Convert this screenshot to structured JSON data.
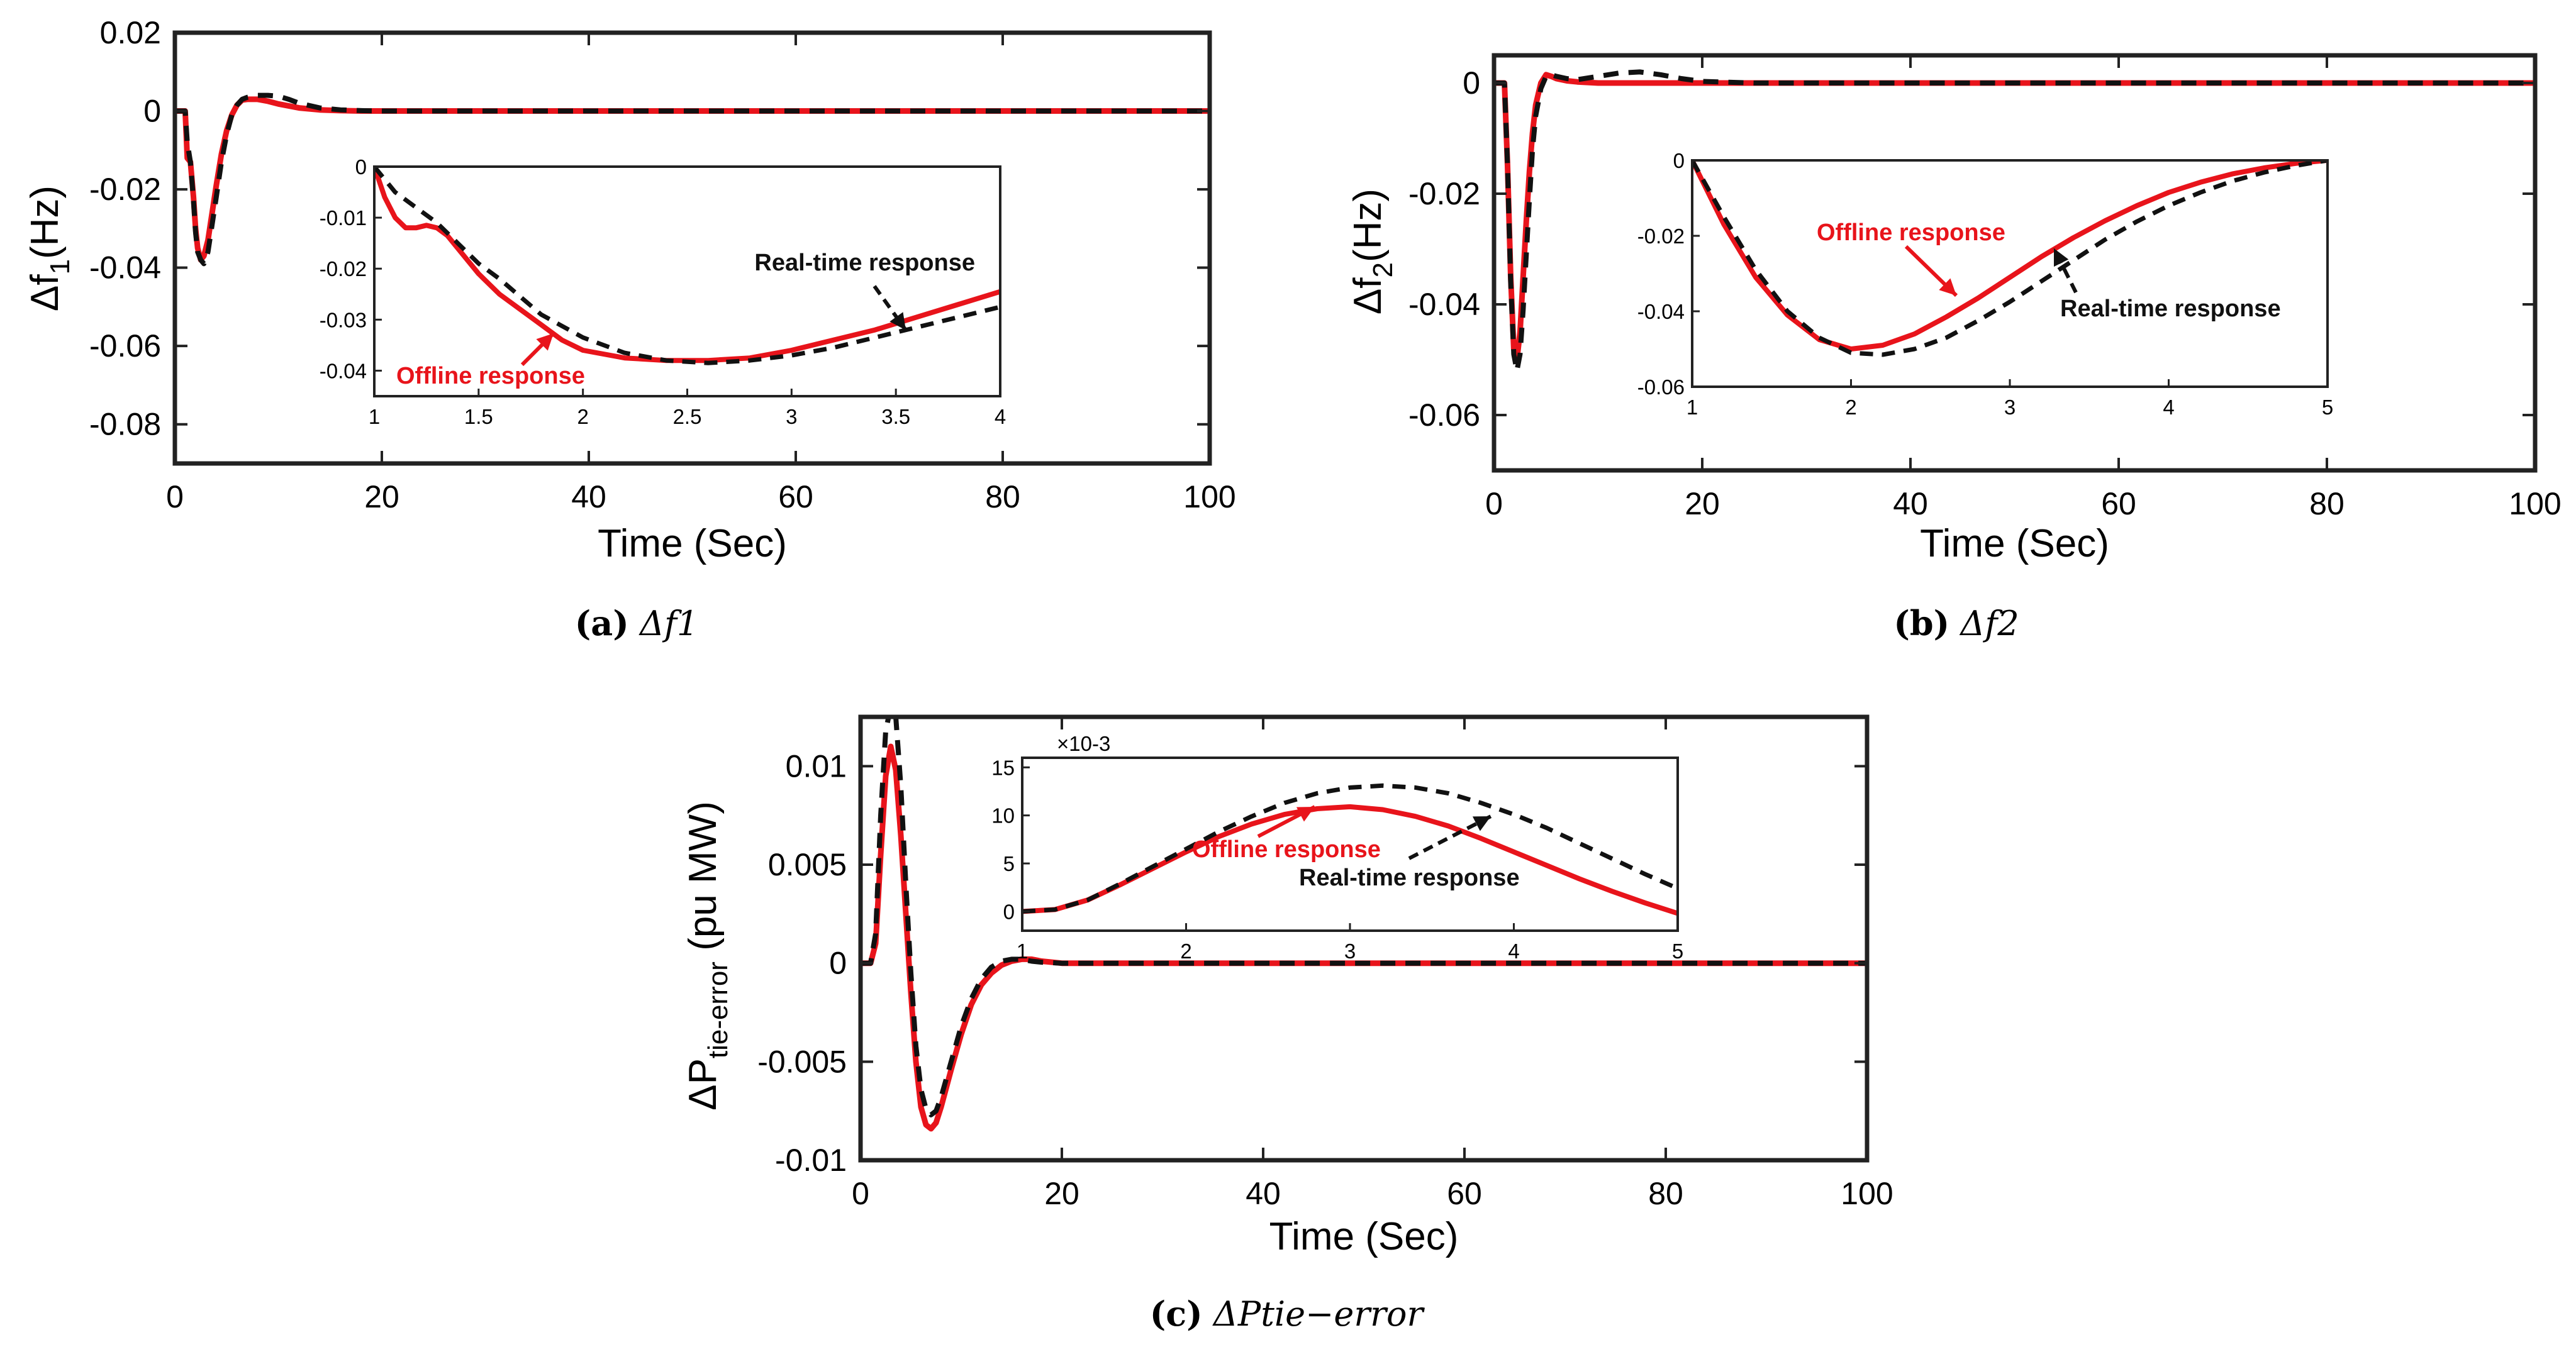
{
  "colors": {
    "offline": "#e8141b",
    "realtime": "#111111",
    "axes": "#222222"
  },
  "annotations": {
    "offline": "Offline response",
    "realtime": "Real-time response",
    "exponent": "×10-3"
  },
  "chart_data": [
    {
      "id": "a",
      "type": "line",
      "caption_letter": "(a)",
      "caption_text": "Δf1",
      "xlabel": "Time (Sec)",
      "ylabel": "Δf1(Hz)",
      "xlim": [
        0,
        100
      ],
      "ylim": [
        -0.09,
        0.02
      ],
      "xticks": [
        "0",
        "20",
        "40",
        "60",
        "80",
        "100"
      ],
      "yticks": [
        "0.02",
        "0",
        "-0.02",
        "-0.04",
        "-0.06",
        "-0.08"
      ],
      "series": [
        {
          "name": "Offline response",
          "x": [
            0,
            1,
            1.2,
            1.5,
            1.8,
            2,
            2.2,
            2.5,
            2.8,
            3.2,
            3.6,
            4,
            4.5,
            5,
            5.5,
            6,
            6.5,
            7,
            8,
            9,
            10,
            12,
            14,
            16,
            18,
            20,
            25,
            30,
            100
          ],
          "y": [
            0,
            0,
            -0.012,
            -0.013,
            -0.022,
            -0.03,
            -0.035,
            -0.038,
            -0.037,
            -0.033,
            -0.026,
            -0.019,
            -0.011,
            -0.005,
            -0.001,
            0.0015,
            0.0028,
            0.003,
            0.003,
            0.0025,
            0.0018,
            0.0008,
            0.0003,
            0.0001,
            0,
            0,
            0,
            0,
            0
          ]
        },
        {
          "name": "Real-time response",
          "x": [
            0,
            1,
            1.2,
            1.5,
            1.8,
            2,
            2.2,
            2.5,
            2.8,
            3.2,
            3.6,
            4,
            4.5,
            5,
            5.5,
            6,
            6.5,
            7,
            8,
            9,
            10,
            11,
            12,
            14,
            16,
            18,
            20,
            25,
            30,
            100
          ],
          "y": [
            0,
            0,
            -0.008,
            -0.013,
            -0.023,
            -0.031,
            -0.036,
            -0.038,
            -0.039,
            -0.036,
            -0.029,
            -0.022,
            -0.013,
            -0.006,
            -0.001,
            0.0015,
            0.003,
            0.0035,
            0.004,
            0.004,
            0.0038,
            0.003,
            0.002,
            0.0008,
            0.0003,
            0.0001,
            0,
            0,
            0,
            0
          ]
        }
      ],
      "inset": {
        "xlim": [
          1,
          4
        ],
        "ylim": [
          -0.045,
          0
        ],
        "xticks": [
          "1",
          "1.5",
          "2",
          "2.5",
          "3",
          "3.5",
          "4"
        ],
        "yticks": [
          "0",
          "-0.01",
          "-0.02",
          "-0.03",
          "-0.04"
        ],
        "series": [
          {
            "name": "Offline response",
            "x": [
              1,
              1.05,
              1.1,
              1.15,
              1.2,
              1.25,
              1.3,
              1.35,
              1.4,
              1.5,
              1.6,
              1.7,
              1.8,
              1.9,
              2,
              2.2,
              2.4,
              2.6,
              2.8,
              3,
              3.2,
              3.4,
              3.6,
              3.8,
              4
            ],
            "y": [
              0,
              -0.006,
              -0.01,
              -0.012,
              -0.012,
              -0.0115,
              -0.012,
              -0.0135,
              -0.016,
              -0.021,
              -0.025,
              -0.028,
              -0.031,
              -0.034,
              -0.036,
              -0.0375,
              -0.038,
              -0.038,
              -0.0375,
              -0.036,
              -0.034,
              -0.032,
              -0.0295,
              -0.027,
              -0.0245
            ]
          },
          {
            "name": "Real-time response",
            "x": [
              1,
              1.1,
              1.2,
              1.3,
              1.4,
              1.5,
              1.6,
              1.8,
              2,
              2.2,
              2.4,
              2.6,
              2.8,
              3,
              3.2,
              3.4,
              3.6,
              3.8,
              4
            ],
            "y": [
              0,
              -0.005,
              -0.008,
              -0.011,
              -0.015,
              -0.019,
              -0.022,
              -0.029,
              -0.0335,
              -0.0365,
              -0.038,
              -0.0385,
              -0.038,
              -0.037,
              -0.0355,
              -0.0335,
              -0.0315,
              -0.0295,
              -0.0275
            ]
          }
        ]
      }
    },
    {
      "id": "b",
      "type": "line",
      "caption_letter": "(b)",
      "caption_text": "Δf2",
      "xlabel": "Time (Sec)",
      "ylabel": "Δf2(Hz)",
      "xlim": [
        0,
        100
      ],
      "ylim": [
        -0.07,
        0.005
      ],
      "xticks": [
        "0",
        "20",
        "40",
        "60",
        "80",
        "100"
      ],
      "yticks": [
        "0",
        "-0.02",
        "-0.04",
        "-0.06"
      ],
      "series": [
        {
          "name": "Offline response",
          "x": [
            0,
            1,
            1.3,
            1.6,
            1.9,
            2.2,
            2.5,
            2.8,
            3.1,
            3.4,
            3.7,
            4,
            4.5,
            5,
            5.5,
            6,
            7,
            8,
            10,
            12,
            15,
            20,
            100
          ],
          "y": [
            0,
            0,
            -0.015,
            -0.035,
            -0.048,
            -0.05,
            -0.045,
            -0.035,
            -0.025,
            -0.016,
            -0.009,
            -0.004,
            0,
            0.0015,
            0.0012,
            0.0008,
            0.0004,
            0.0002,
            0,
            0,
            0,
            0,
            0
          ]
        },
        {
          "name": "Real-time response",
          "x": [
            0,
            1,
            1.3,
            1.6,
            1.9,
            2.2,
            2.5,
            2.8,
            3.1,
            3.4,
            3.7,
            4,
            4.5,
            5,
            5.5,
            6,
            7,
            8,
            10,
            12,
            14,
            16,
            18,
            20,
            25,
            100
          ],
          "y": [
            0,
            0,
            -0.015,
            -0.036,
            -0.049,
            -0.052,
            -0.049,
            -0.041,
            -0.031,
            -0.021,
            -0.012,
            -0.006,
            -0.001,
            0.0012,
            0.0015,
            0.0012,
            0.0008,
            0.0006,
            0.0012,
            0.0018,
            0.002,
            0.0015,
            0.0008,
            0.0003,
            0,
            0
          ]
        }
      ],
      "inset": {
        "xlim": [
          1,
          5
        ],
        "ylim": [
          -0.06,
          0
        ],
        "xticks": [
          "1",
          "2",
          "3",
          "4",
          "5"
        ],
        "yticks": [
          "0",
          "-0.02",
          "-0.04",
          "-0.06"
        ],
        "series": [
          {
            "name": "Offline response",
            "x": [
              1,
              1.2,
              1.4,
              1.6,
              1.8,
              2,
              2.2,
              2.4,
              2.6,
              2.8,
              3,
              3.2,
              3.4,
              3.6,
              3.8,
              4,
              4.2,
              4.4,
              4.6,
              4.8,
              5
            ],
            "y": [
              0,
              -0.017,
              -0.031,
              -0.041,
              -0.0475,
              -0.05,
              -0.049,
              -0.046,
              -0.0415,
              -0.0365,
              -0.031,
              -0.0255,
              -0.0205,
              -0.016,
              -0.012,
              -0.0085,
              -0.0058,
              -0.0036,
              -0.002,
              -0.0008,
              0
            ]
          },
          {
            "name": "Real-time response",
            "x": [
              1,
              1.2,
              1.4,
              1.6,
              1.8,
              2,
              2.2,
              2.4,
              2.6,
              2.8,
              3,
              3.2,
              3.4,
              3.6,
              3.8,
              4,
              4.2,
              4.4,
              4.6,
              4.8,
              5
            ],
            "y": [
              0,
              -0.015,
              -0.029,
              -0.04,
              -0.047,
              -0.051,
              -0.0515,
              -0.05,
              -0.047,
              -0.0425,
              -0.0375,
              -0.032,
              -0.0265,
              -0.021,
              -0.0162,
              -0.012,
              -0.0085,
              -0.0055,
              -0.0032,
              -0.0014,
              0
            ]
          }
        ]
      }
    },
    {
      "id": "c",
      "type": "line",
      "caption_letter": "(c)",
      "caption_text": "ΔPtie−error",
      "xlabel": "Time (Sec)",
      "ylabel": "ΔPtie-error (pu MW)",
      "xlim": [
        0,
        100
      ],
      "ylim": [
        -0.01,
        0.0125
      ],
      "xticks": [
        "0",
        "20",
        "40",
        "60",
        "80",
        "100"
      ],
      "yticks": [
        "0.01",
        "0.005",
        "0",
        "-0.005",
        "-0.01"
      ],
      "series": [
        {
          "name": "Offline response",
          "x": [
            0,
            1,
            1.5,
            2,
            2.5,
            3,
            3.5,
            4,
            4.5,
            5,
            5.5,
            6,
            6.5,
            7,
            7.5,
            8,
            9,
            10,
            11,
            12,
            13,
            14,
            15,
            16,
            17,
            18,
            20,
            25,
            100
          ],
          "y": [
            0,
            0,
            0.001,
            0.0055,
            0.0095,
            0.011,
            0.0098,
            0.0065,
            0.0025,
            -0.0015,
            -0.005,
            -0.0073,
            -0.0082,
            -0.0084,
            -0.0081,
            -0.0073,
            -0.0054,
            -0.0036,
            -0.0021,
            -0.0011,
            -0.0005,
            -0.0001,
            0.0001,
            0.0002,
            0.0002,
            0.0001,
            0,
            0,
            0
          ]
        },
        {
          "name": "Real-time response",
          "x": [
            0,
            1,
            1.5,
            2,
            2.5,
            3,
            3.5,
            4,
            4.5,
            5,
            5.5,
            6,
            6.5,
            7,
            7.5,
            8,
            9,
            10,
            11,
            12,
            13,
            14,
            15,
            16,
            17,
            18,
            20,
            25,
            100
          ],
          "y": [
            0,
            0,
            0.0015,
            0.0075,
            0.0118,
            0.013,
            0.0125,
            0.009,
            0.004,
            -0.0005,
            -0.0042,
            -0.0064,
            -0.0074,
            -0.0077,
            -0.0075,
            -0.0068,
            -0.005,
            -0.0032,
            -0.0018,
            -0.0008,
            -0.0002,
            0.0001,
            0.0002,
            0.0002,
            0.0001,
            5e-05,
            0,
            0,
            0
          ]
        }
      ],
      "inset": {
        "xlim": [
          1,
          5
        ],
        "ylim": [
          -0.002,
          0.016
        ],
        "xticks": [
          "1",
          "2",
          "3",
          "4",
          "5"
        ],
        "yticks": [
          "15",
          "10",
          "5",
          "0"
        ],
        "ytick_values": [
          0.015,
          0.01,
          0.005,
          0
        ],
        "series": [
          {
            "name": "Offline response",
            "x": [
              1,
              1.2,
              1.4,
              1.6,
              1.8,
              2,
              2.2,
              2.4,
              2.6,
              2.8,
              3,
              3.2,
              3.4,
              3.6,
              3.8,
              4,
              4.2,
              4.4,
              4.6,
              4.8,
              5
            ],
            "y": [
              0,
              0.0002,
              0.0012,
              0.0028,
              0.0045,
              0.0062,
              0.0078,
              0.0091,
              0.0101,
              0.0107,
              0.0109,
              0.0106,
              0.0099,
              0.0089,
              0.0076,
              0.0062,
              0.0048,
              0.0034,
              0.0021,
              0.0009,
              -0.0002
            ]
          },
          {
            "name": "Real-time response",
            "x": [
              1,
              1.2,
              1.4,
              1.6,
              1.8,
              2,
              2.2,
              2.4,
              2.6,
              2.8,
              3,
              3.2,
              3.4,
              3.6,
              3.8,
              4,
              4.2,
              4.4,
              4.6,
              4.8,
              5
            ],
            "y": [
              0,
              0.0002,
              0.0012,
              0.0029,
              0.0047,
              0.0065,
              0.0083,
              0.0099,
              0.0113,
              0.0123,
              0.0129,
              0.0131,
              0.0129,
              0.0123,
              0.0113,
              0.0101,
              0.0087,
              0.0071,
              0.0055,
              0.0039,
              0.0024
            ]
          }
        ]
      }
    }
  ]
}
